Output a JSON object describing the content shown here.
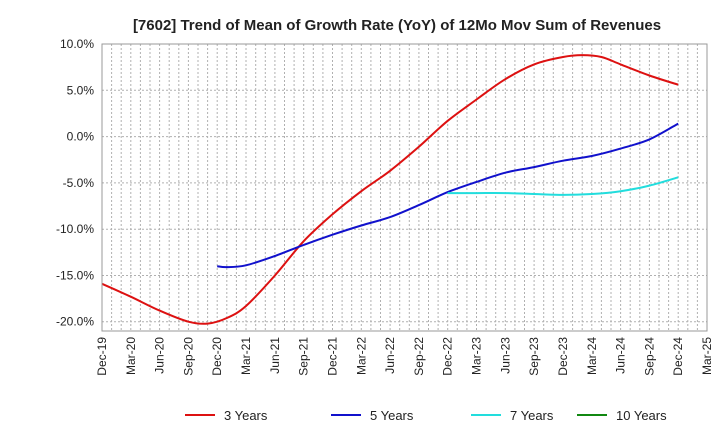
{
  "chart_data": {
    "type": "line",
    "title": "[7602]  Trend of Mean of Growth Rate (YoY) of 12Mo Mov Sum of Revenues",
    "xlabel": "",
    "ylabel": "",
    "ylim": [
      -21,
      10
    ],
    "yticks": [
      10,
      5,
      0,
      -5,
      -10,
      -15,
      -20
    ],
    "ytick_labels": [
      "10.0%",
      "5.0%",
      "0.0%",
      "-5.0%",
      "-10.0%",
      "-15.0%",
      "-20.0%"
    ],
    "xlim": [
      0,
      63
    ],
    "xticks": [
      0,
      3,
      6,
      9,
      12,
      15,
      18,
      21,
      24,
      27,
      30,
      33,
      36,
      39,
      42,
      45,
      48,
      51,
      54,
      57,
      60,
      63
    ],
    "xtick_labels": [
      "Dec-19",
      "Mar-20",
      "Jun-20",
      "Sep-20",
      "Dec-20",
      "Mar-21",
      "Jun-21",
      "Sep-21",
      "Dec-21",
      "Mar-22",
      "Jun-22",
      "Sep-22",
      "Dec-22",
      "Mar-23",
      "Jun-23",
      "Sep-23",
      "Dec-23",
      "Mar-24",
      "Jun-24",
      "Sep-24",
      "Dec-24",
      "Mar-25"
    ],
    "grid": true,
    "legend_position": "bottom",
    "series": [
      {
        "name": "3 Years",
        "color": "#dd1111",
        "x": [
          0,
          3,
          6,
          9,
          11,
          13,
          15,
          18,
          21,
          24,
          27,
          30,
          33,
          36,
          39,
          42,
          45,
          48,
          50,
          52,
          54,
          57,
          60
        ],
        "values": [
          -15.9,
          -17.3,
          -18.8,
          -20.0,
          -20.2,
          -19.6,
          -18.3,
          -15.0,
          -11.3,
          -8.4,
          -5.9,
          -3.7,
          -1.1,
          1.7,
          4.0,
          6.2,
          7.8,
          8.6,
          8.8,
          8.6,
          7.8,
          6.6,
          5.6
        ]
      },
      {
        "name": "5 Years",
        "color": "#1111cc",
        "x": [
          12,
          13,
          15,
          18,
          21,
          24,
          27,
          30,
          33,
          36,
          39,
          42,
          45,
          48,
          51,
          54,
          57,
          60
        ],
        "values": [
          -14.0,
          -14.1,
          -13.9,
          -12.9,
          -11.7,
          -10.6,
          -9.6,
          -8.7,
          -7.4,
          -6.0,
          -4.9,
          -3.9,
          -3.3,
          -2.6,
          -2.1,
          -1.3,
          -0.3,
          1.4
        ]
      },
      {
        "name": "7 Years",
        "color": "#22dddd",
        "x": [
          36,
          39,
          42,
          45,
          48,
          51,
          54,
          57,
          60
        ],
        "values": [
          -6.1,
          -6.1,
          -6.1,
          -6.2,
          -6.3,
          -6.2,
          -5.9,
          -5.3,
          -4.4
        ]
      },
      {
        "name": "10 Years",
        "color": "#118811",
        "x": [],
        "values": []
      }
    ]
  }
}
